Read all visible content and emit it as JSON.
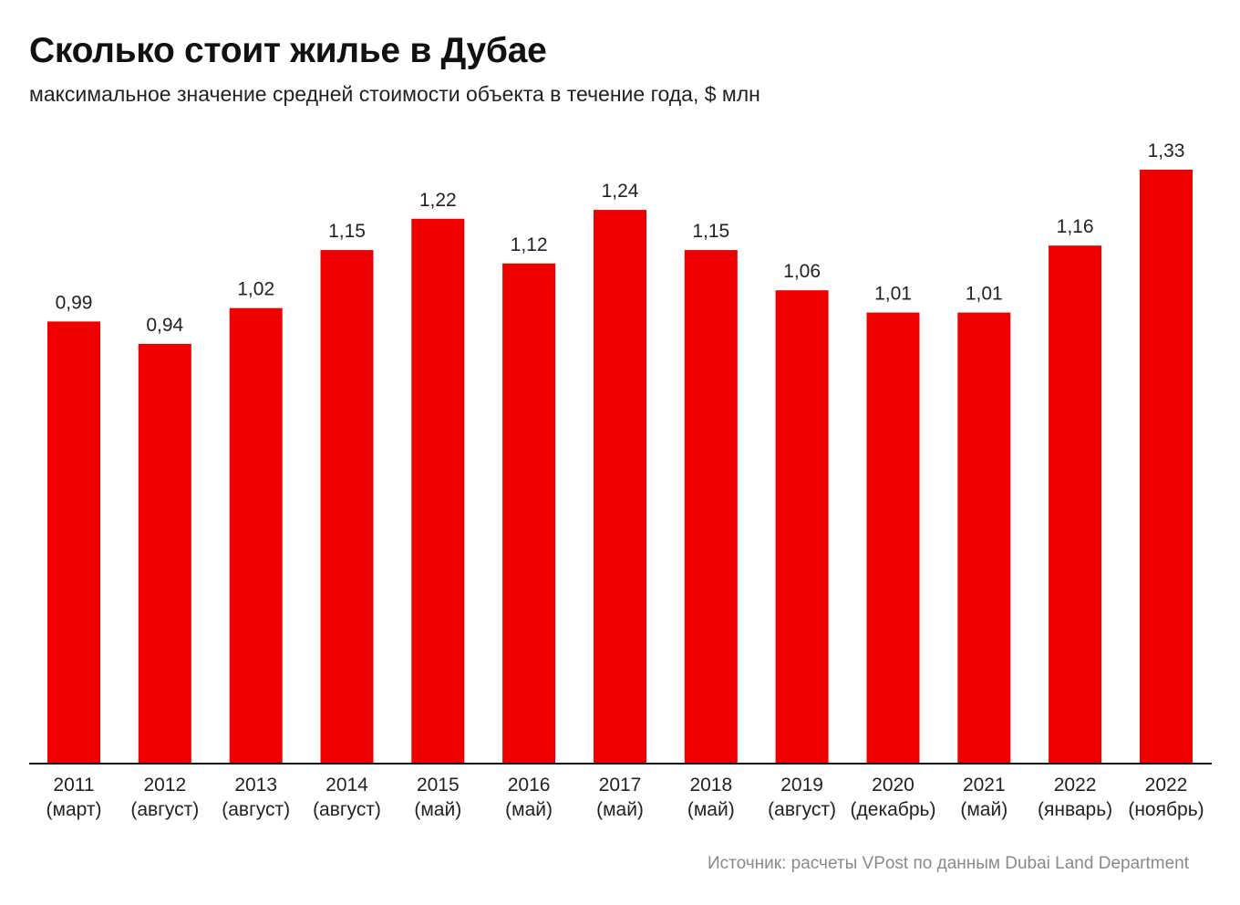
{
  "header": {
    "title": "Сколько стоит жилье в Дубае",
    "subtitle": "максимальное значение средней стоимости объекта в течение года, $ млн"
  },
  "footer": {
    "source": "Источник: расчеты VPost по данным Dubai Land Department"
  },
  "colors": {
    "bar": "#ee0000",
    "axis": "#111111",
    "label": "#222222"
  },
  "chart_data": {
    "type": "bar",
    "title": "Сколько стоит жилье в Дубае",
    "subtitle": "максимальное значение средней стоимости объекта в течение года, $ млн",
    "xlabel": "",
    "ylabel": "",
    "ylim": [
      0,
      1.33
    ],
    "grid": false,
    "legend": "none",
    "categories": [
      {
        "year": "2011",
        "period": "(март)"
      },
      {
        "year": "2012",
        "period": "(август)"
      },
      {
        "year": "2013",
        "period": "(август)"
      },
      {
        "year": "2014",
        "period": "(август)"
      },
      {
        "year": "2015",
        "period": "(май)"
      },
      {
        "year": "2016",
        "period": "(май)"
      },
      {
        "year": "2017",
        "period": "(май)"
      },
      {
        "year": "2018",
        "period": "(май)"
      },
      {
        "year": "2019",
        "period": "(август)"
      },
      {
        "year": "2020",
        "period": "(декабрь)"
      },
      {
        "year": "2021",
        "period": "(май)"
      },
      {
        "year": "2022",
        "period": "(январь)"
      },
      {
        "year": "2022",
        "period": "(ноябрь)"
      }
    ],
    "values": [
      0.99,
      0.94,
      1.02,
      1.15,
      1.22,
      1.12,
      1.24,
      1.15,
      1.06,
      1.01,
      1.01,
      1.16,
      1.33
    ],
    "value_labels": [
      "0,99",
      "0,94",
      "1,02",
      "1,15",
      "1,22",
      "1,12",
      "1,24",
      "1,15",
      "1,06",
      "1,01",
      "1,01",
      "1,16",
      "1,33"
    ]
  }
}
